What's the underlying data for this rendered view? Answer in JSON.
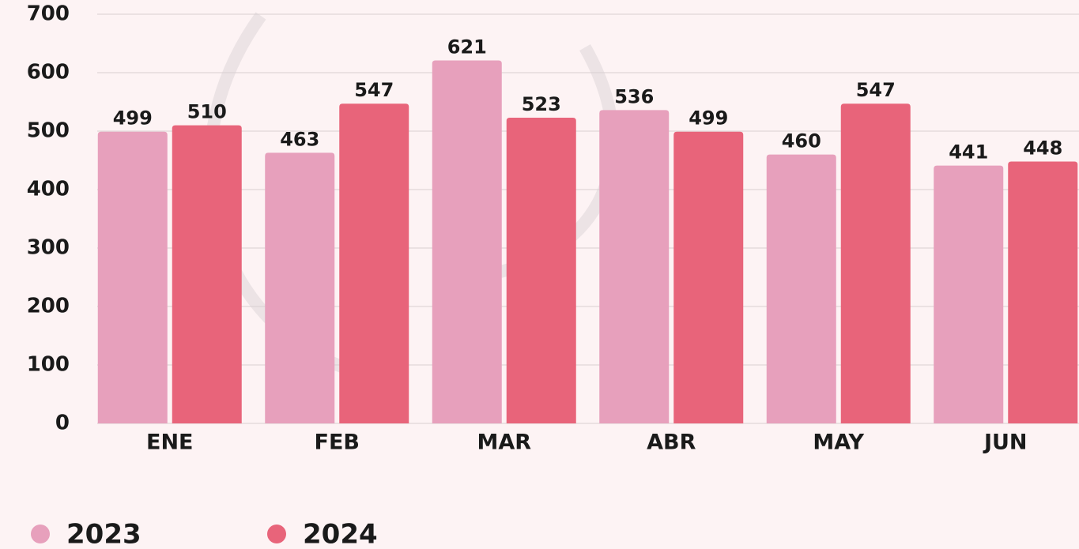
{
  "chart_data": {
    "type": "bar",
    "categories": [
      "ENE",
      "FEB",
      "MAR",
      "ABR",
      "MAY",
      "JUN"
    ],
    "series": [
      {
        "name": "2023",
        "color": "#e7a0bc",
        "values": [
          499,
          463,
          621,
          536,
          460,
          441
        ]
      },
      {
        "name": "2024",
        "color": "#e8647a",
        "values": [
          510,
          547,
          523,
          499,
          547,
          448
        ]
      }
    ],
    "ylim": [
      0,
      700
    ],
    "yticks": [
      0,
      100,
      200,
      300,
      400,
      500,
      600,
      700
    ],
    "grid": true,
    "legend": "bottom-left"
  }
}
